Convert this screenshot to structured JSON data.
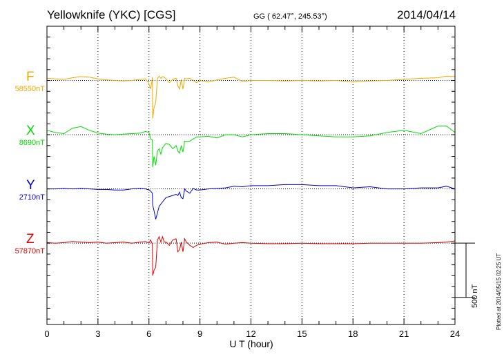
{
  "header": {
    "station": "Yellowknife (YKC)  [CGS]",
    "coordinates": "GG ( 62.47°, 245.53°)",
    "date": "2014/04/14"
  },
  "scale_label": "500 nT",
  "footnote": "Plotted at 2014/05/15 02:25 UT",
  "colors": {
    "F": "#f0a800",
    "X": "#00dd00",
    "Y": "#0000cc",
    "Z": "#dd0000",
    "frame": "#000000",
    "grid": "#000000"
  },
  "chart_data": {
    "type": "line",
    "title": "Yellowknife (YKC)  [CGS]",
    "xlabel": "U T (hour)",
    "ylabel": "",
    "xlim": [
      0,
      24
    ],
    "ylim_nT": [
      -2250,
      500
    ],
    "x_ticks": [
      0,
      3,
      6,
      9,
      12,
      15,
      18,
      21,
      24
    ],
    "x_tick_labels": [
      "0",
      "3",
      "6",
      "9",
      "12",
      "15",
      "18",
      "21",
      "24"
    ],
    "scale_bar_nT": 500,
    "grid": "dotted",
    "series": [
      {
        "name": "F",
        "letter": "F",
        "baseline_label": "58550nT",
        "offset_nT": 0,
        "x": [
          0,
          0.5,
          1.0,
          1.5,
          2.0,
          2.5,
          3.0,
          3.5,
          4.0,
          4.5,
          5.0,
          5.5,
          5.8,
          6.0,
          6.1,
          6.2,
          6.22,
          6.3,
          6.4,
          6.5,
          6.6,
          6.7,
          6.8,
          6.9,
          7.0,
          7.2,
          7.4,
          7.6,
          7.7,
          7.8,
          7.9,
          8.0,
          8.1,
          8.2,
          8.4,
          8.6,
          8.8,
          9.0,
          9.5,
          10.0,
          10.5,
          11.0,
          11.5,
          12.0,
          13,
          14,
          15,
          16,
          17,
          18,
          19,
          20,
          21,
          22,
          23,
          23.5,
          24
        ],
        "values": [
          20,
          15,
          10,
          25,
          35,
          30,
          15,
          5,
          0,
          -5,
          0,
          10,
          15,
          -30,
          -80,
          30,
          -350,
          -250,
          -200,
          20,
          40,
          20,
          35,
          30,
          15,
          -20,
          10,
          20,
          -50,
          -80,
          10,
          -80,
          20,
          15,
          20,
          0,
          -20,
          0,
          -15,
          5,
          20,
          30,
          -10,
          0,
          0,
          -5,
          0,
          -5,
          0,
          -15,
          -5,
          0,
          10,
          20,
          25,
          40,
          35
        ]
      },
      {
        "name": "X",
        "letter": "X",
        "baseline_label": "8690nT",
        "offset_nT": -500,
        "x": [
          0,
          0.5,
          1.0,
          1.5,
          2.0,
          2.5,
          3.0,
          3.5,
          4.0,
          4.5,
          5.0,
          5.5,
          5.8,
          6.0,
          6.1,
          6.2,
          6.22,
          6.3,
          6.4,
          6.5,
          6.6,
          6.7,
          6.8,
          6.9,
          7.0,
          7.2,
          7.4,
          7.6,
          7.7,
          7.8,
          7.9,
          8.0,
          8.1,
          8.2,
          8.4,
          8.6,
          8.8,
          9.0,
          9.5,
          10.0,
          10.5,
          11.0,
          11.5,
          12.0,
          13,
          14,
          15,
          16,
          17,
          18,
          19,
          20,
          21,
          22,
          23,
          23.5,
          24
        ],
        "values": [
          40,
          20,
          10,
          60,
          75,
          40,
          15,
          5,
          0,
          5,
          10,
          15,
          30,
          20,
          -40,
          -50,
          -300,
          -200,
          -280,
          -150,
          -130,
          -180,
          -120,
          -100,
          -80,
          -90,
          -130,
          -100,
          -150,
          -170,
          -100,
          -160,
          -60,
          -60,
          -60,
          -40,
          -20,
          -20,
          -15,
          -30,
          0,
          0,
          -20,
          0,
          10,
          10,
          0,
          -10,
          -20,
          -20,
          -10,
          20,
          40,
          10,
          80,
          80,
          20
        ]
      },
      {
        "name": "Y",
        "letter": "Y",
        "baseline_label": "2710nT",
        "offset_nT": -1000,
        "x": [
          0,
          0.5,
          1.0,
          1.5,
          2.0,
          2.5,
          3.0,
          3.5,
          4.0,
          4.5,
          5.0,
          5.5,
          5.8,
          6.0,
          6.1,
          6.2,
          6.22,
          6.3,
          6.4,
          6.5,
          6.6,
          6.7,
          6.8,
          6.9,
          7.0,
          7.2,
          7.4,
          7.6,
          7.7,
          7.8,
          7.9,
          8.0,
          8.1,
          8.2,
          8.4,
          8.6,
          8.8,
          9.0,
          9.5,
          10.0,
          10.5,
          11.0,
          11.5,
          12.0,
          13,
          14,
          15,
          16,
          17,
          18,
          19,
          20,
          21,
          22,
          23,
          23.5,
          24
        ],
        "values": [
          0,
          0,
          5,
          0,
          5,
          0,
          -5,
          -5,
          -10,
          -10,
          0,
          5,
          0,
          -10,
          -20,
          -40,
          -150,
          -200,
          -280,
          -220,
          -160,
          -140,
          -120,
          -100,
          -80,
          -70,
          -60,
          -50,
          -60,
          -30,
          -80,
          -90,
          0,
          -20,
          -40,
          5,
          -10,
          -10,
          0,
          5,
          10,
          25,
          20,
          30,
          30,
          40,
          40,
          30,
          30,
          10,
          20,
          0,
          0,
          10,
          10,
          25,
          0
        ]
      },
      {
        "name": "Z",
        "letter": "Z",
        "baseline_label": "57870nT",
        "offset_nT": -1500,
        "x": [
          0,
          0.5,
          1.0,
          1.5,
          2.0,
          2.5,
          3.0,
          3.5,
          4.0,
          4.5,
          5.0,
          5.5,
          5.8,
          6.0,
          6.1,
          6.2,
          6.22,
          6.3,
          6.4,
          6.5,
          6.6,
          6.7,
          6.8,
          6.9,
          7.0,
          7.2,
          7.4,
          7.6,
          7.7,
          7.8,
          7.9,
          8.0,
          8.1,
          8.2,
          8.4,
          8.6,
          8.8,
          9.0,
          9.5,
          10.0,
          10.5,
          11.0,
          11.5,
          12.0,
          13,
          14,
          15,
          16,
          17,
          18,
          19,
          20,
          21,
          22,
          23,
          23.5,
          24
        ],
        "values": [
          5,
          0,
          5,
          15,
          10,
          5,
          10,
          0,
          5,
          10,
          0,
          10,
          15,
          0,
          30,
          -10,
          -300,
          -250,
          -220,
          30,
          60,
          10,
          60,
          10,
          10,
          -20,
          30,
          40,
          -80,
          -60,
          10,
          -80,
          40,
          10,
          -20,
          -40,
          -20,
          -10,
          5,
          10,
          -10,
          0,
          5,
          0,
          -5,
          -5,
          0,
          -5,
          -5,
          -5,
          0,
          0,
          0,
          0,
          5,
          10,
          20
        ]
      }
    ]
  }
}
